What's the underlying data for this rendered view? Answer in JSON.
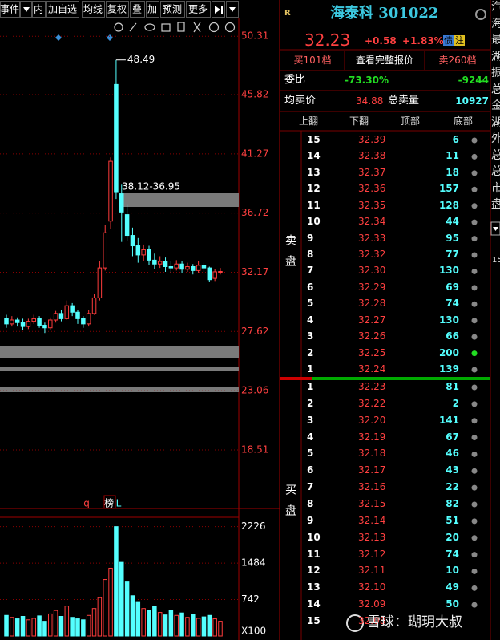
{
  "toolbar": [
    "事件",
    "内",
    "加自选",
    "均线",
    "复权",
    "叠",
    "加",
    "预测",
    "更多"
  ],
  "chart": {
    "type": "candlestick",
    "ylim": [
      15,
      51
    ],
    "yticks": [
      50.31,
      45.82,
      41.27,
      36.72,
      32.17,
      27.62,
      23.06,
      18.51
    ],
    "high_label": "48.49",
    "range_label": "38.12-36.95",
    "up_color": "#ff3c3c",
    "down_color": "#54ffff",
    "candles": [
      {
        "open": 28.6,
        "close": 28.2,
        "high": 28.9,
        "low": 27.9
      },
      {
        "open": 28.2,
        "close": 28.5,
        "high": 28.8,
        "low": 28.0
      },
      {
        "open": 28.5,
        "close": 28.3,
        "high": 28.7,
        "low": 28.0
      },
      {
        "open": 28.3,
        "close": 28.0,
        "high": 28.6,
        "low": 27.7
      },
      {
        "open": 28.0,
        "close": 28.4,
        "high": 28.6,
        "low": 27.8
      },
      {
        "open": 28.4,
        "close": 28.6,
        "high": 28.9,
        "low": 28.2
      },
      {
        "open": 28.6,
        "close": 28.1,
        "high": 28.8,
        "low": 27.9
      },
      {
        "open": 28.1,
        "close": 27.9,
        "high": 28.3,
        "low": 27.5
      },
      {
        "open": 27.9,
        "close": 28.5,
        "high": 28.7,
        "low": 27.7
      },
      {
        "open": 28.5,
        "close": 29.0,
        "high": 29.2,
        "low": 28.3
      },
      {
        "open": 29.0,
        "close": 28.6,
        "high": 29.3,
        "low": 28.4
      },
      {
        "open": 28.6,
        "close": 29.6,
        "high": 30.0,
        "low": 28.5
      },
      {
        "open": 29.6,
        "close": 29.1,
        "high": 29.8,
        "low": 28.8
      },
      {
        "open": 29.1,
        "close": 28.6,
        "high": 29.3,
        "low": 28.2
      },
      {
        "open": 28.6,
        "close": 28.2,
        "high": 28.8,
        "low": 27.9
      },
      {
        "open": 28.2,
        "close": 29.0,
        "high": 29.3,
        "low": 28.0
      },
      {
        "open": 29.0,
        "close": 30.2,
        "high": 30.5,
        "low": 28.9
      },
      {
        "open": 30.2,
        "close": 32.5,
        "high": 33.0,
        "low": 30.0
      },
      {
        "open": 32.5,
        "close": 35.2,
        "high": 35.8,
        "low": 32.3
      },
      {
        "open": 36.1,
        "close": 40.7,
        "high": 41.0,
        "low": 35.5
      },
      {
        "open": 46.6,
        "close": 38.3,
        "high": 48.49,
        "low": 37.8
      },
      {
        "open": 38.2,
        "close": 36.8,
        "high": 38.9,
        "low": 34.5
      },
      {
        "open": 36.6,
        "close": 35.0,
        "high": 37.4,
        "low": 34.6
      },
      {
        "open": 35.0,
        "close": 34.2,
        "high": 35.6,
        "low": 33.4
      },
      {
        "open": 34.2,
        "close": 33.5,
        "high": 34.8,
        "low": 32.9
      },
      {
        "open": 33.5,
        "close": 33.9,
        "high": 34.3,
        "low": 33.0
      },
      {
        "open": 33.9,
        "close": 33.1,
        "high": 34.2,
        "low": 32.7
      },
      {
        "open": 33.1,
        "close": 32.8,
        "high": 33.6,
        "low": 32.4
      },
      {
        "open": 32.8,
        "close": 33.0,
        "high": 33.4,
        "low": 32.5
      },
      {
        "open": 33.0,
        "close": 32.6,
        "high": 33.3,
        "low": 32.2
      },
      {
        "open": 32.6,
        "close": 32.5,
        "high": 33.0,
        "low": 32.1
      },
      {
        "open": 32.5,
        "close": 32.8,
        "high": 33.1,
        "low": 32.3
      },
      {
        "open": 32.8,
        "close": 32.4,
        "high": 33.0,
        "low": 32.1
      },
      {
        "open": 32.4,
        "close": 32.6,
        "high": 32.9,
        "low": 32.2
      },
      {
        "open": 32.6,
        "close": 32.3,
        "high": 32.8,
        "low": 32.0
      },
      {
        "open": 32.3,
        "close": 32.7,
        "high": 33.0,
        "low": 32.1
      },
      {
        "open": 32.7,
        "close": 32.5,
        "high": 32.9,
        "low": 32.2
      },
      {
        "open": 32.5,
        "close": 31.6,
        "high": 32.6,
        "low": 31.4
      },
      {
        "open": 31.7,
        "close": 32.2,
        "high": 32.4,
        "low": 31.5
      },
      {
        "open": 32.2,
        "close": 32.23,
        "high": 32.5,
        "low": 32.0
      }
    ],
    "markers": [
      "q",
      "榜",
      "L"
    ],
    "volume_ylim": [
      0,
      2400
    ],
    "volume_ticks": [
      2226,
      1484,
      742
    ],
    "volume_unit": "X100",
    "volumes": [
      420,
      380,
      350,
      400,
      330,
      360,
      410,
      300,
      450,
      520,
      400,
      610,
      380,
      350,
      330,
      420,
      560,
      780,
      1150,
      1380,
      2226,
      1500,
      1100,
      820,
      700,
      560,
      520,
      600,
      480,
      430,
      520,
      420,
      470,
      380,
      440,
      360,
      390,
      420,
      350,
      300
    ]
  },
  "stock": {
    "tag": "R",
    "name": "海泰科 301022",
    "price": "32.23",
    "change": "+0.58",
    "change_pct": "+1.83%",
    "badges": [
      "债",
      "注"
    ]
  },
  "quote_links": [
    "买101档",
    "查看完整报价",
    "卖260档"
  ],
  "ratio": {
    "label": "委比",
    "pct": "-73.30%",
    "diff": "-9244"
  },
  "avg": {
    "label": "均卖价",
    "price": "34.88",
    "label2": "总卖量",
    "volume": "10927"
  },
  "book_headers": [
    "上翻",
    "下翻",
    "顶部",
    "底部"
  ],
  "sell_label": "卖盘",
  "buy_label": "买盘",
  "sell": [
    {
      "level": "15",
      "price": "32.39",
      "volume": "6"
    },
    {
      "level": "14",
      "price": "32.38",
      "volume": "11"
    },
    {
      "level": "13",
      "price": "32.37",
      "volume": "18"
    },
    {
      "level": "12",
      "price": "32.36",
      "volume": "157"
    },
    {
      "level": "11",
      "price": "32.35",
      "volume": "128"
    },
    {
      "level": "10",
      "price": "32.34",
      "volume": "44"
    },
    {
      "level": "9",
      "price": "32.33",
      "volume": "95"
    },
    {
      "level": "8",
      "price": "32.32",
      "volume": "77"
    },
    {
      "level": "7",
      "price": "32.30",
      "volume": "130"
    },
    {
      "level": "6",
      "price": "32.29",
      "volume": "69"
    },
    {
      "level": "5",
      "price": "32.28",
      "volume": "74"
    },
    {
      "level": "4",
      "price": "32.27",
      "volume": "130"
    },
    {
      "level": "3",
      "price": "32.26",
      "volume": "66"
    },
    {
      "level": "2",
      "price": "32.25",
      "volume": "200",
      "dot": "#22dd22"
    },
    {
      "level": "1",
      "price": "32.24",
      "volume": "139"
    }
  ],
  "buy": [
    {
      "level": "1",
      "price": "32.23",
      "volume": "81"
    },
    {
      "level": "2",
      "price": "32.22",
      "volume": "2"
    },
    {
      "level": "3",
      "price": "32.20",
      "volume": "141"
    },
    {
      "level": "4",
      "price": "32.19",
      "volume": "67"
    },
    {
      "level": "5",
      "price": "32.18",
      "volume": "46"
    },
    {
      "level": "6",
      "price": "32.17",
      "volume": "43"
    },
    {
      "level": "7",
      "price": "32.16",
      "volume": "22"
    },
    {
      "level": "8",
      "price": "32.15",
      "volume": "82"
    },
    {
      "level": "9",
      "price": "32.14",
      "volume": "51"
    },
    {
      "level": "10",
      "price": "32.13",
      "volume": "20"
    },
    {
      "level": "11",
      "price": "32.12",
      "volume": "74"
    },
    {
      "level": "12",
      "price": "32.11",
      "volume": "10"
    },
    {
      "level": "13",
      "price": "32.10",
      "volume": "49"
    },
    {
      "level": "14",
      "price": "32.09",
      "volume": "50"
    },
    {
      "level": "15",
      "price": "32.08",
      "volume": ""
    }
  ],
  "side_text": [
    "汽",
    "海",
    "最",
    "湖",
    "振",
    "总",
    "金",
    "湖",
    "外",
    "总",
    "总",
    "市",
    "盘"
  ],
  "side_number": "15",
  "watermark": "雪球：瑚玥大叔"
}
